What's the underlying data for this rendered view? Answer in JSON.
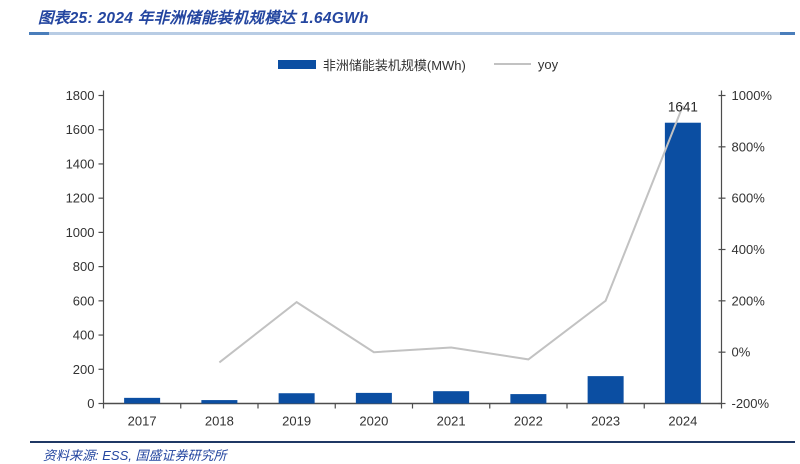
{
  "page": {
    "title": "图表25: 2024 年非洲储能装机规模达 1.64GWh",
    "source": "资料来源: ESS, 国盛证券研究所"
  },
  "colors": {
    "bar": "#0b4ea2",
    "line": "#c2c2c2",
    "title_text": "#2446a0",
    "source_text": "#2446a0",
    "axis": "#4d4d4d",
    "tick_label": "#333333",
    "annotation_text": "#262626",
    "rule_light": "#b8cce4",
    "rule_dark": "#4a7ebb",
    "bottom_rule": "#1f3864"
  },
  "legend": {
    "items": [
      {
        "label": "非洲储能装机规模(MWh)",
        "swatch": "bar",
        "color": "#0b4ea2"
      },
      {
        "label": "yoy",
        "swatch": "line",
        "color": "#c2c2c2"
      }
    ]
  },
  "chart_data": {
    "type": "bar",
    "title": "图表25: 2024 年非洲储能装机规模达 1.64GWh",
    "categories": [
      "2017",
      "2018",
      "2019",
      "2020",
      "2021",
      "2022",
      "2023",
      "2024"
    ],
    "series": [
      {
        "name": "非洲储能装机规模(MWh)",
        "type": "bar",
        "axis": "left",
        "color": "#0b4ea2",
        "values": [
          33,
          20,
          60,
          62,
          72,
          55,
          160,
          1641
        ]
      },
      {
        "name": "yoy",
        "type": "line",
        "axis": "right",
        "color": "#c2c2c2",
        "values": [
          null,
          -40,
          195,
          0,
          18,
          -28,
          200,
          960
        ]
      }
    ],
    "left_axis": {
      "min": 0,
      "max": 1800,
      "step": 200,
      "suffix": ""
    },
    "right_axis": {
      "min": -200,
      "max": 1000,
      "step": 200,
      "suffix": "%"
    },
    "annotations": [
      {
        "series": 0,
        "index": 7,
        "text": "1641"
      }
    ],
    "grid": false,
    "legend_position": "top"
  }
}
